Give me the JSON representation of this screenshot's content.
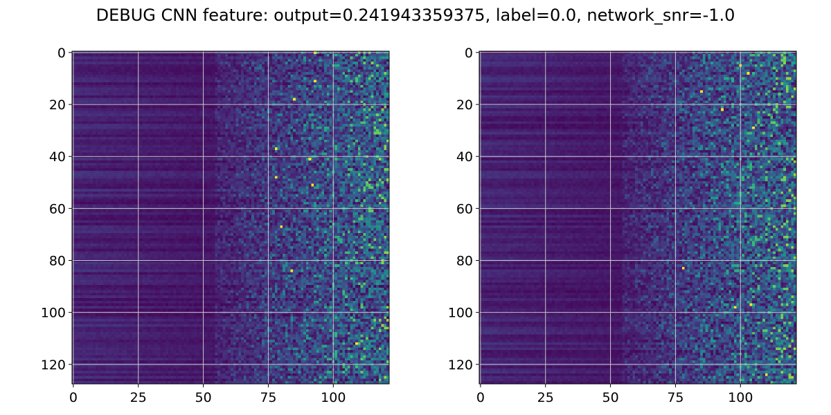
{
  "title": "DEBUG CNN feature: output=0.241943359375, label=0.0, network_snr=-1.0",
  "colors": {
    "colormap": "viridis",
    "grid": "#c8c8c8",
    "axes": "#000000",
    "background": "#ffffff"
  },
  "chart_data": [
    {
      "type": "heatmap",
      "title": "",
      "xlabel": "",
      "ylabel": "",
      "rows": 128,
      "cols": 122,
      "xlim": [
        -0.5,
        121.5
      ],
      "ylim": [
        127.5,
        -0.5
      ],
      "xticks": [
        0,
        25,
        50,
        75,
        100
      ],
      "xtick_labels": [
        "0",
        "25",
        "50",
        "75",
        "100"
      ],
      "yticks": [
        0,
        20,
        40,
        60,
        80,
        100,
        120
      ],
      "ytick_labels": [
        "0",
        "20",
        "40",
        "60",
        "80",
        "100",
        "120"
      ],
      "grid": true,
      "colormap": "viridis",
      "value_range": [
        0,
        1
      ],
      "pattern": "low values on left (x<60), increasing noisy activity toward right; sparse bright pixels near x>75",
      "bright_points": [
        [
          93,
          0
        ],
        [
          93,
          11
        ],
        [
          85,
          18
        ],
        [
          78,
          37
        ],
        [
          91,
          41
        ],
        [
          78,
          48
        ],
        [
          92,
          51
        ],
        [
          80,
          67
        ],
        [
          84,
          84
        ],
        [
          109,
          112
        ]
      ]
    },
    {
      "type": "heatmap",
      "title": "",
      "xlabel": "",
      "ylabel": "",
      "rows": 128,
      "cols": 122,
      "xlim": [
        -0.5,
        121.5
      ],
      "ylim": [
        127.5,
        -0.5
      ],
      "xticks": [
        0,
        25,
        50,
        75,
        100
      ],
      "xtick_labels": [
        "0",
        "25",
        "50",
        "75",
        "100"
      ],
      "yticks": [
        0,
        20,
        40,
        60,
        80,
        100,
        120
      ],
      "ytick_labels": [
        "0",
        "20",
        "40",
        "60",
        "80",
        "100",
        "120"
      ],
      "grid": true,
      "colormap": "viridis",
      "value_range": [
        0,
        1
      ],
      "pattern": "low values on left (x<65), increasing noisy activity toward right; sparse bright pixels near x>75",
      "bright_points": [
        [
          103,
          8
        ],
        [
          93,
          22
        ],
        [
          105,
          29
        ],
        [
          85,
          15
        ],
        [
          78,
          83
        ],
        [
          104,
          97
        ],
        [
          110,
          124
        ],
        [
          98,
          98
        ],
        [
          100,
          5
        ]
      ]
    }
  ]
}
